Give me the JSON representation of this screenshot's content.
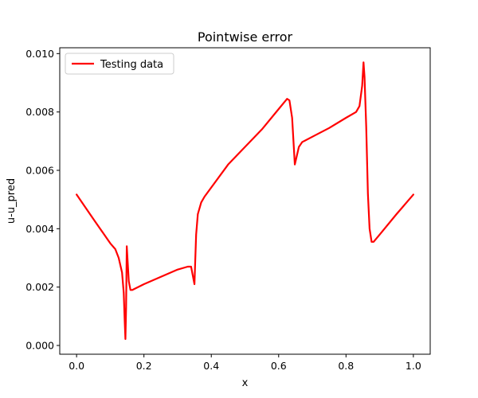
{
  "chart_data": {
    "type": "line",
    "title": "Pointwise error",
    "xlabel": "x",
    "ylabel": "u-u_pred",
    "xlim": [
      -0.05,
      1.05
    ],
    "ylim": [
      -0.0003,
      0.0102
    ],
    "xticks": [
      0.0,
      0.2,
      0.4,
      0.6,
      0.8,
      1.0
    ],
    "xtick_labels": [
      "0.0",
      "0.2",
      "0.4",
      "0.6",
      "0.8",
      "1.0"
    ],
    "yticks": [
      0.0,
      0.002,
      0.004,
      0.006,
      0.008,
      0.01
    ],
    "ytick_labels": [
      "0.000",
      "0.002",
      "0.004",
      "0.006",
      "0.008",
      "0.010"
    ],
    "grid": false,
    "legend_position": "top-left",
    "series": [
      {
        "name": "Testing data",
        "color": "#ff0000",
        "points": [
          [
            0.0,
            0.00517
          ],
          [
            0.05,
            0.00433
          ],
          [
            0.1,
            0.0035
          ],
          [
            0.115,
            0.0033
          ],
          [
            0.125,
            0.003
          ],
          [
            0.135,
            0.0025
          ],
          [
            0.14,
            0.0018
          ],
          [
            0.143,
            0.0008
          ],
          [
            0.145,
            0.00022
          ],
          [
            0.147,
            0.0013
          ],
          [
            0.149,
            0.0034
          ],
          [
            0.152,
            0.0028
          ],
          [
            0.155,
            0.0022
          ],
          [
            0.16,
            0.0019
          ],
          [
            0.165,
            0.0019
          ],
          [
            0.2,
            0.0021
          ],
          [
            0.3,
            0.0026
          ],
          [
            0.33,
            0.0027
          ],
          [
            0.34,
            0.0027
          ],
          [
            0.345,
            0.0024
          ],
          [
            0.35,
            0.0021
          ],
          [
            0.352,
            0.0028
          ],
          [
            0.355,
            0.0038
          ],
          [
            0.36,
            0.0045
          ],
          [
            0.37,
            0.0049
          ],
          [
            0.38,
            0.0051
          ],
          [
            0.45,
            0.0062
          ],
          [
            0.55,
            0.0074
          ],
          [
            0.6,
            0.0081
          ],
          [
            0.625,
            0.00845
          ],
          [
            0.632,
            0.0084
          ],
          [
            0.64,
            0.0078
          ],
          [
            0.645,
            0.0068
          ],
          [
            0.648,
            0.0062
          ],
          [
            0.652,
            0.0064
          ],
          [
            0.66,
            0.0068
          ],
          [
            0.67,
            0.00697
          ],
          [
            0.7,
            0.00715
          ],
          [
            0.75,
            0.00745
          ],
          [
            0.8,
            0.0078
          ],
          [
            0.83,
            0.008
          ],
          [
            0.84,
            0.0082
          ],
          [
            0.848,
            0.0089
          ],
          [
            0.852,
            0.0097
          ],
          [
            0.855,
            0.0092
          ],
          [
            0.86,
            0.0075
          ],
          [
            0.865,
            0.0052
          ],
          [
            0.87,
            0.004
          ],
          [
            0.876,
            0.00355
          ],
          [
            0.882,
            0.00355
          ],
          [
            0.9,
            0.0038
          ],
          [
            0.95,
            0.0045
          ],
          [
            1.0,
            0.00517
          ]
        ]
      }
    ]
  }
}
